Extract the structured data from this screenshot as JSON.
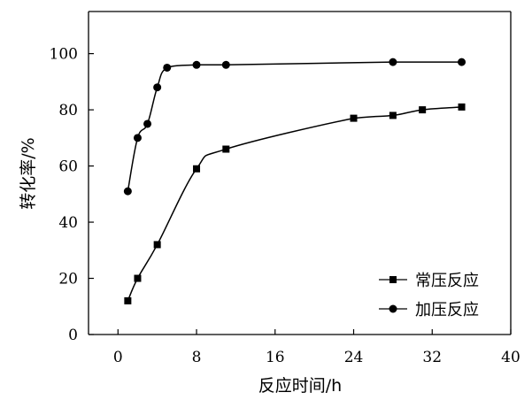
{
  "chart_data": {
    "type": "line",
    "xlabel": "反应时间/h",
    "ylabel": "转化率/%",
    "xlim": [
      -3,
      40
    ],
    "ylim": [
      0,
      115
    ],
    "x_ticks": [
      0,
      8,
      16,
      24,
      32,
      40
    ],
    "y_ticks": [
      0,
      20,
      40,
      60,
      80,
      100
    ],
    "legend_position": "bottom-right",
    "series": [
      {
        "name": "常压反应",
        "marker": "square",
        "color": "#000000",
        "x": [
          1,
          2,
          4,
          8,
          11,
          24,
          28,
          31,
          35
        ],
        "y": [
          12,
          20,
          32,
          59,
          66,
          77,
          78,
          80,
          81
        ]
      },
      {
        "name": "加压反应",
        "marker": "circle",
        "color": "#000000",
        "x": [
          1,
          2,
          3,
          4,
          5,
          8,
          11,
          28,
          35
        ],
        "y": [
          51,
          70,
          75,
          88,
          95,
          96,
          96,
          97,
          97
        ]
      }
    ]
  }
}
